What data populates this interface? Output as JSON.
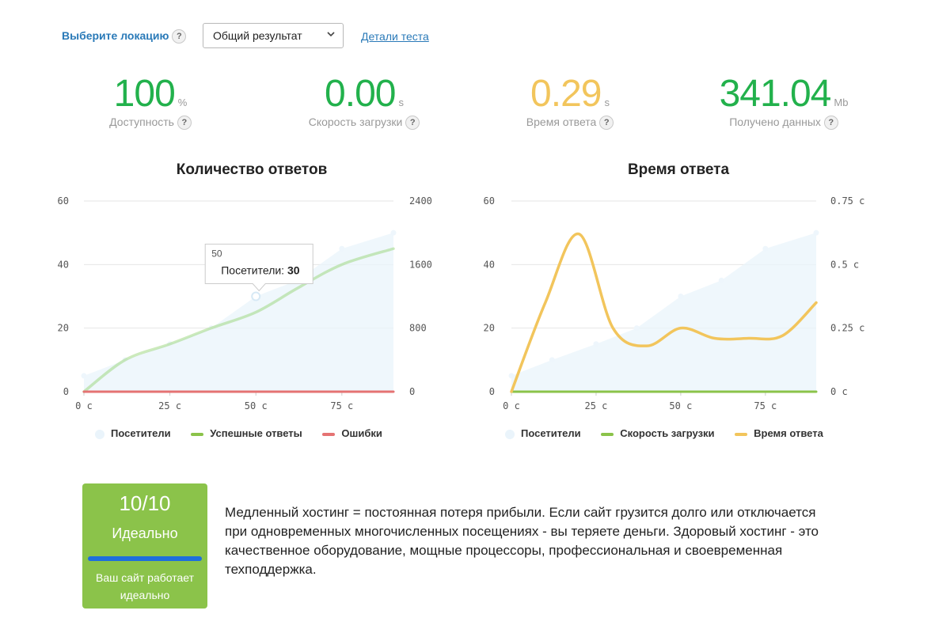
{
  "header": {
    "location_label": "Выберите локацию",
    "select_value": "Общий результат",
    "details_link": "Детали теста"
  },
  "stats": [
    {
      "value": "100",
      "unit": "%",
      "caption": "Доступность",
      "color": "#22b14c"
    },
    {
      "value": "0.00",
      "unit": "s",
      "caption": "Скорость загрузки",
      "color": "#22b14c"
    },
    {
      "value": "0.29",
      "unit": "s",
      "caption": "Время ответа",
      "color": "#f2c55c"
    },
    {
      "value": "341.04",
      "unit": "Mb",
      "caption": "Получено данных",
      "color": "#22b14c"
    }
  ],
  "chart_data": [
    {
      "type": "area",
      "title": "Количество ответов",
      "x_ticks": [
        "0 с",
        "25 с",
        "50 с",
        "75 с"
      ],
      "x_range": [
        0,
        90
      ],
      "y_left_ticks": [
        "0",
        "20",
        "40",
        "60"
      ],
      "y_left_range": [
        0,
        60
      ],
      "y_right_ticks": [
        "0",
        "800",
        "1600",
        "2400"
      ],
      "y_right_range": [
        0,
        2400
      ],
      "grid": true,
      "legend_position": "bottom",
      "series": [
        {
          "name": "Посетители",
          "axis": "left",
          "color": "#eaf4fb",
          "style": "area",
          "x": [
            0,
            12,
            25,
            37,
            50,
            62,
            75,
            90
          ],
          "values": [
            5,
            10,
            15,
            20,
            30,
            35,
            45,
            50
          ]
        },
        {
          "name": "Успешные ответы",
          "axis": "right",
          "color": "#8fd16b",
          "style": "line",
          "x": [
            0,
            12,
            25,
            37,
            50,
            62,
            75,
            90
          ],
          "values": [
            0,
            400,
            600,
            800,
            1000,
            1300,
            1600,
            1800
          ]
        },
        {
          "name": "Ошибки",
          "axis": "right",
          "color": "#e57373",
          "style": "line",
          "x": [
            0,
            90
          ],
          "values": [
            0,
            0
          ]
        }
      ],
      "tooltip": {
        "header": "50",
        "label": "Посетители:",
        "value": "30",
        "x": 50
      }
    },
    {
      "type": "area",
      "title": "Время ответа",
      "x_ticks": [
        "0 с",
        "25 с",
        "50 с",
        "75 с"
      ],
      "x_range": [
        0,
        90
      ],
      "y_left_ticks": [
        "0",
        "20",
        "40",
        "60"
      ],
      "y_left_range": [
        0,
        60
      ],
      "y_right_ticks": [
        "0 с",
        "0.25 с",
        "0.5 с",
        "0.75 с"
      ],
      "y_right_range": [
        0,
        0.75
      ],
      "grid": true,
      "legend_position": "bottom",
      "series": [
        {
          "name": "Посетители",
          "axis": "left",
          "color": "#eaf4fb",
          "style": "area",
          "x": [
            0,
            12,
            25,
            37,
            50,
            62,
            75,
            90
          ],
          "values": [
            5,
            10,
            15,
            20,
            30,
            35,
            45,
            50
          ]
        },
        {
          "name": "Скорость загрузки",
          "axis": "right",
          "color": "#8bc34a",
          "style": "line",
          "x": [
            0,
            90
          ],
          "values": [
            0,
            0
          ]
        },
        {
          "name": "Время ответа",
          "axis": "right",
          "color": "#f2c55c",
          "style": "line",
          "x": [
            0,
            10,
            20,
            30,
            40,
            50,
            60,
            70,
            80,
            90
          ],
          "values": [
            0,
            0.35,
            0.62,
            0.25,
            0.18,
            0.25,
            0.21,
            0.21,
            0.22,
            0.35
          ]
        }
      ]
    }
  ],
  "score": {
    "value": "10/10",
    "label": "Идеально",
    "description": "Ваш сайт работает идеально",
    "color": "#8bc34a"
  },
  "info_text": "Медленный хостинг = постоянная потеря прибыли. Если сайт грузится долго или отключается при одновременных многочисленных посещениях - вы теряете деньги. Здоровый хостинг - это качественное оборудование, мощные процессоры, профессиональная и своевременная техподдержка."
}
